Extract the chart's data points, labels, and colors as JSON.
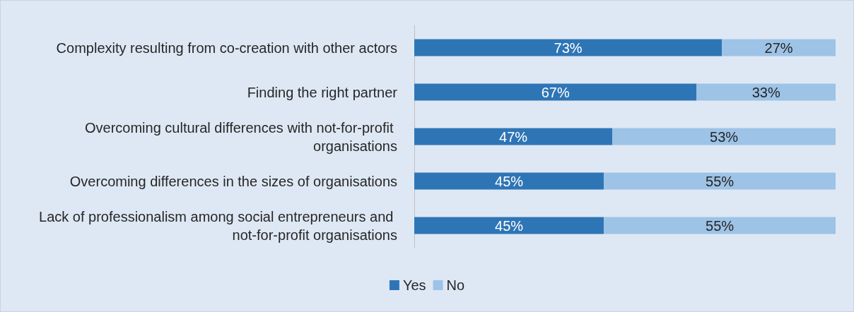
{
  "chart_data": {
    "type": "bar",
    "orientation": "horizontal",
    "stacked": true,
    "legend": "bottom",
    "grid": false,
    "categories": [
      "Complexity resulting from co-creation with other actors",
      "Finding the right partner",
      "Overcoming cultural differences with not-for-profit organisations",
      "Overcoming differences in the sizes of organisations",
      "Lack of professionalism among social entrepreneurs and not-for-profit organisations"
    ],
    "series": [
      {
        "name": "Yes",
        "color": "#2e75b6",
        "values": [
          73,
          67,
          47,
          45,
          45
        ],
        "value_labels": [
          "73%",
          "67%",
          "47%",
          "45%",
          "45%"
        ]
      },
      {
        "name": "No",
        "color": "#9dc3e6",
        "values": [
          27,
          33,
          53,
          55,
          55
        ],
        "value_labels": [
          "27%",
          "33%",
          "53%",
          "55%",
          "55%"
        ]
      }
    ]
  }
}
